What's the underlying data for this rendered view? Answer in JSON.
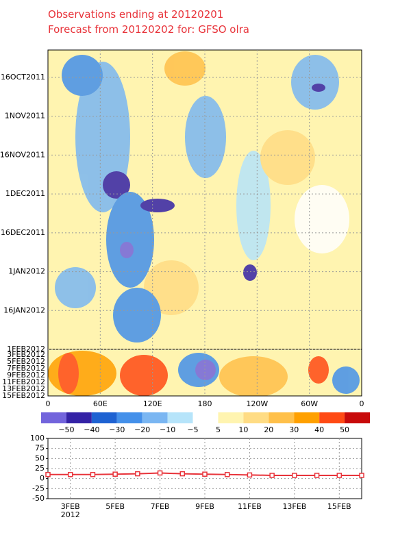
{
  "chart_data": [
    {
      "type": "hovmoller",
      "title": "Observations ending at 20120201",
      "subtitle": "Forecast from 20120202 for: GFSO olra",
      "obs_dates": [
        "16OCT2011",
        "1NOV2011",
        "16NOV2011",
        "1DEC2011",
        "16DEC2011",
        "1JAN2012",
        "16JAN2012",
        "1FEB2012"
      ],
      "forecast_dates": [
        "3FEB2012",
        "5FEB2012",
        "7FEB2012",
        "9FEB2012",
        "11FEB2012",
        "13FEB2012",
        "15FEB2012"
      ],
      "longitudes": [
        "0",
        "60E",
        "120E",
        "180",
        "120W",
        "60W",
        "0"
      ],
      "levels": [
        {
          "value": -50,
          "label": "−50"
        },
        {
          "value": -40,
          "label": "−40"
        },
        {
          "value": -30,
          "label": "−30"
        },
        {
          "value": -20,
          "label": "−20"
        },
        {
          "value": -10,
          "label": "−10"
        },
        {
          "value": -5,
          "label": "−5"
        },
        5,
        10,
        20,
        30,
        40,
        50
      ],
      "colors": [
        "#7264dc",
        "#3422a6",
        "#1e62d2",
        "#4490ea",
        "#7ab6f2",
        "#b6e4fa",
        "#ffffff",
        "#fff4b0",
        "#ffdc84",
        "#ffc04a",
        "#ffa000",
        "#ff4a14",
        "#c80a0a"
      ]
    },
    {
      "type": "line",
      "categories": [
        null,
        "3FEB",
        null,
        "5FEB",
        null,
        "7FEB",
        null,
        "9FEB",
        null,
        "11FEB",
        null,
        "13FEB",
        null,
        "15FEB",
        null
      ],
      "year_label": "2012",
      "series": [
        {
          "color": "#e8333a",
          "values": [
            10,
            10,
            10,
            11,
            12,
            14,
            12,
            11,
            10,
            9,
            8,
            8,
            8,
            8,
            8
          ]
        }
      ],
      "ylim": [
        -50,
        100
      ],
      "yticks": [
        -50,
        -25,
        0,
        25,
        50,
        75,
        100
      ],
      "grid": true
    }
  ]
}
